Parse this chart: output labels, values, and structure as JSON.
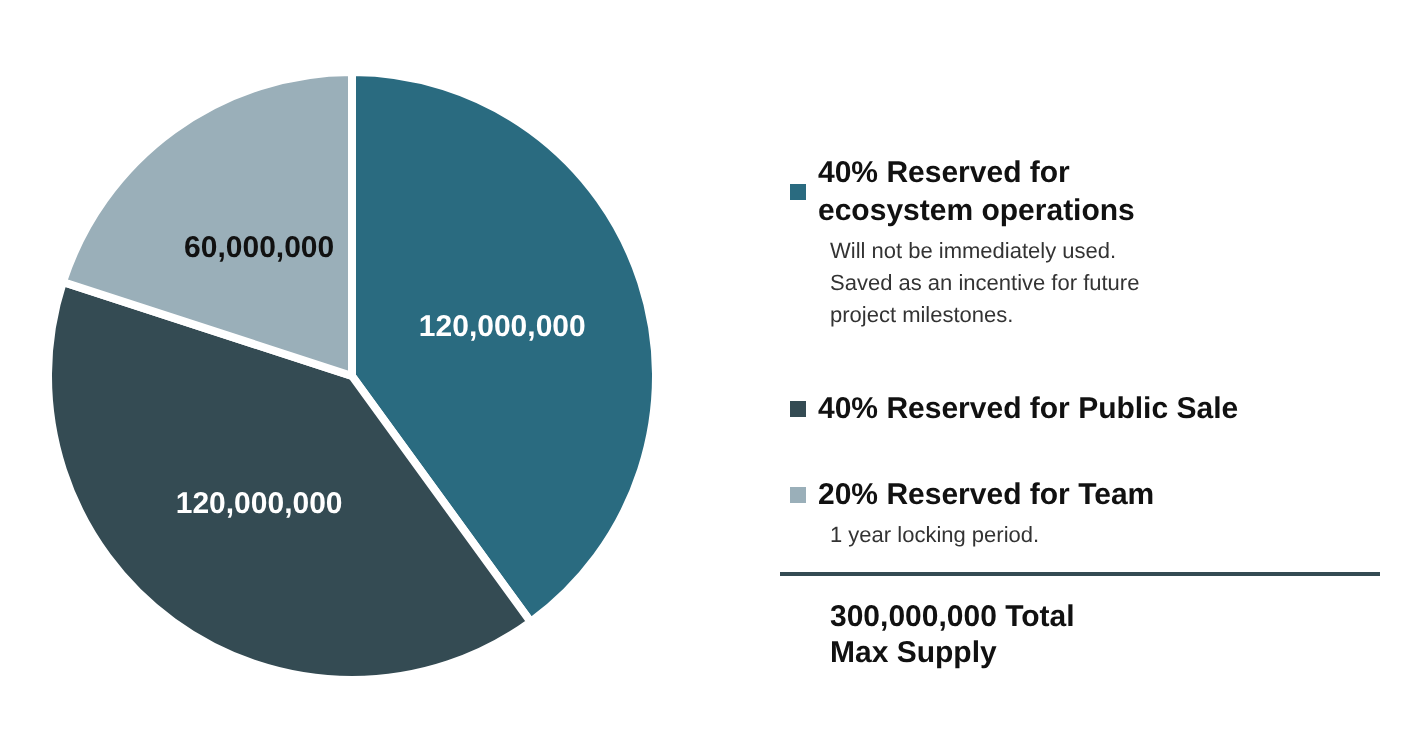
{
  "chart_data": {
    "type": "pie",
    "categories": [
      "40% Reserved for ecosystem operations",
      "40% Reserved for Public Sale",
      "20% Reserved for Team"
    ],
    "values": [
      120000000,
      120000000,
      60000000
    ],
    "colors": [
      "#2a6b80",
      "#344b53",
      "#9aafb9"
    ],
    "value_labels": [
      "120,000,000",
      "120,000,000",
      "60,000,000"
    ],
    "legend": "right",
    "annotations": [
      "Will not be immediately used. Saved as an incentive for future project milestones.",
      "1 year locking period.",
      "300,000,000 Total Max Supply"
    ]
  }
}
